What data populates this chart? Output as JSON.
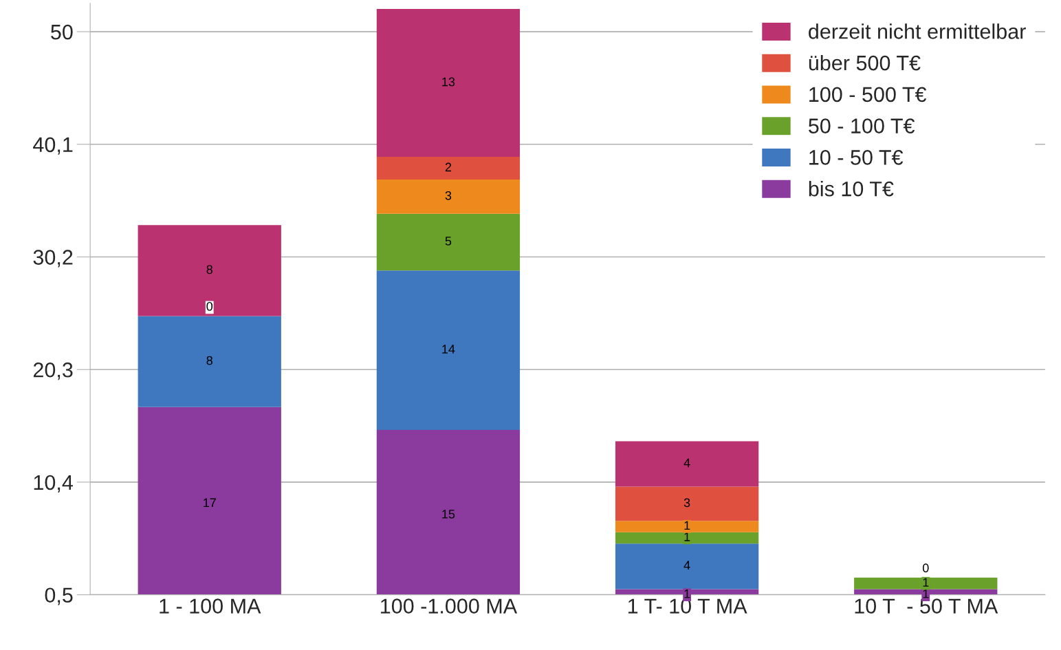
{
  "chart_data": {
    "type": "bar",
    "stacked": true,
    "categories": [
      "1 - 100 MA",
      "100 -1.000 MA",
      "1 T- 10 T MA",
      "10 T  - 50 T MA"
    ],
    "series": [
      {
        "name": "bis 10 T€",
        "color": "#8b3a9e",
        "values": [
          17,
          15,
          1,
          1
        ],
        "value_labels": [
          "17",
          "15",
          "1",
          "1"
        ]
      },
      {
        "name": "10 - 50 T€",
        "color": "#3f78bf",
        "values": [
          8,
          14,
          4,
          null
        ],
        "value_labels": [
          "8",
          "14",
          "4",
          null
        ]
      },
      {
        "name": "50 - 100 T€",
        "color": "#6aa12b",
        "values": [
          null,
          5,
          1,
          1
        ],
        "value_labels": [
          null,
          "5",
          "1",
          "1"
        ]
      },
      {
        "name": "100 - 500 T€",
        "color": "#ee8a1d",
        "values": [
          null,
          3,
          1,
          null
        ],
        "value_labels": [
          null,
          "3",
          "1",
          null
        ]
      },
      {
        "name": "über 500 T€",
        "color": "#e0503f",
        "values": [
          null,
          2,
          3,
          null
        ],
        "value_labels": [
          null,
          "2",
          "3",
          null
        ]
      },
      {
        "name": "derzeit nicht ermittelbar",
        "color": "#bb3270",
        "values": [
          8,
          13,
          4,
          null
        ],
        "value_labels": [
          "8",
          "13",
          "4",
          null
        ]
      }
    ],
    "annotations": [
      {
        "text": "0",
        "x": "1 - 100 MA",
        "y": 25
      },
      {
        "text": "0",
        "x": "10 T  - 50 T MA",
        "y": 2
      }
    ],
    "ylim": [
      0.5,
      52.5
    ],
    "yticks": [
      {
        "value": 0.5,
        "label": "0,5"
      },
      {
        "value": 10.4,
        "label": "10,4"
      },
      {
        "value": 20.3,
        "label": "20,3"
      },
      {
        "value": 30.2,
        "label": "30,2"
      },
      {
        "value": 40.1,
        "label": "40,1"
      },
      {
        "value": 50,
        "label": "50"
      }
    ],
    "grid": "y",
    "legend": "top right"
  }
}
